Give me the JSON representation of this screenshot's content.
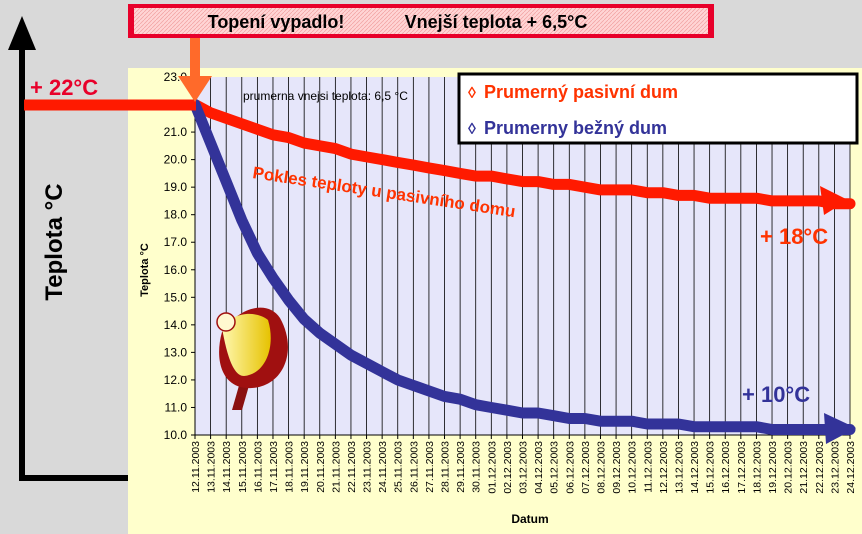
{
  "banner": {
    "left": "Topení vypadlo!",
    "right": "Vnejší teplota  + 6,5°C"
  },
  "outer_axis_label": "Teplota °C",
  "callouts": {
    "start": "+ 22°C",
    "passive_end": "+ 18°C",
    "normal_end": "+ 10°C"
  },
  "curve_annotation": "Pokles teploty u pasivního domu",
  "note": "prumerna vnejsi teplota: 6,5 °C",
  "colors": {
    "passive": "#ff1a00",
    "normal": "#333399",
    "plot_bg": "#e6e6fa",
    "panel_bg": "#ffffcc",
    "callout": "#ff3300",
    "start_callout": "#e8002a"
  },
  "chart_data": {
    "type": "line",
    "title": "",
    "xlabel": "Datum",
    "ylabel": "Teplota °C",
    "ylim": [
      10.0,
      23.0
    ],
    "yticks": [
      "10.0",
      "11.0",
      "12.0",
      "13.0",
      "14.0",
      "15.0",
      "16.0",
      "17.0",
      "18.0",
      "19.0",
      "20.0",
      "21.0",
      "22.0",
      "23.0"
    ],
    "grid": "vertical",
    "legend_position": "top-right",
    "categories": [
      "12.11.2003",
      "13.11.2003",
      "14.11.2003",
      "15.11.2003",
      "16.11.2003",
      "17.11.2003",
      "18.11.2003",
      "19.11.2003",
      "20.11.2003",
      "21.11.2003",
      "22.11.2003",
      "23.11.2003",
      "24.11.2003",
      "25.11.2003",
      "26.11.2003",
      "27.11.2003",
      "28.11.2003",
      "29.11.2003",
      "30.11.2003",
      "01.12.2003",
      "02.12.2003",
      "03.12.2003",
      "04.12.2003",
      "05.12.2003",
      "06.12.2003",
      "07.12.2003",
      "08.12.2003",
      "09.12.2003",
      "10.12.2003",
      "11.12.2003",
      "12.12.2003",
      "13.12.2003",
      "14.12.2003",
      "15.12.2003",
      "16.12.2003",
      "17.12.2003",
      "18.12.2003",
      "19.12.2003",
      "20.12.2003",
      "21.12.2003",
      "22.12.2003",
      "23.12.2003",
      "24.12.2003"
    ],
    "series": [
      {
        "name": "Prumerný pasivní dum",
        "marker": "◊",
        "values": [
          22.0,
          21.7,
          21.5,
          21.3,
          21.1,
          20.9,
          20.8,
          20.6,
          20.5,
          20.4,
          20.2,
          20.1,
          20.0,
          19.9,
          19.8,
          19.7,
          19.6,
          19.5,
          19.4,
          19.4,
          19.3,
          19.2,
          19.2,
          19.1,
          19.1,
          19.0,
          18.9,
          18.9,
          18.9,
          18.8,
          18.8,
          18.7,
          18.7,
          18.6,
          18.6,
          18.6,
          18.6,
          18.5,
          18.5,
          18.5,
          18.5,
          18.4,
          18.4
        ]
      },
      {
        "name": "Prumerny bežný dum",
        "marker": "◊",
        "values": [
          22.0,
          20.6,
          19.2,
          17.8,
          16.6,
          15.7,
          14.9,
          14.2,
          13.7,
          13.3,
          12.9,
          12.6,
          12.3,
          12.0,
          11.8,
          11.6,
          11.4,
          11.3,
          11.1,
          11.0,
          10.9,
          10.8,
          10.8,
          10.7,
          10.6,
          10.6,
          10.5,
          10.5,
          10.5,
          10.4,
          10.4,
          10.4,
          10.3,
          10.3,
          10.3,
          10.3,
          10.3,
          10.2,
          10.2,
          10.2,
          10.2,
          10.2,
          10.2
        ]
      }
    ]
  }
}
